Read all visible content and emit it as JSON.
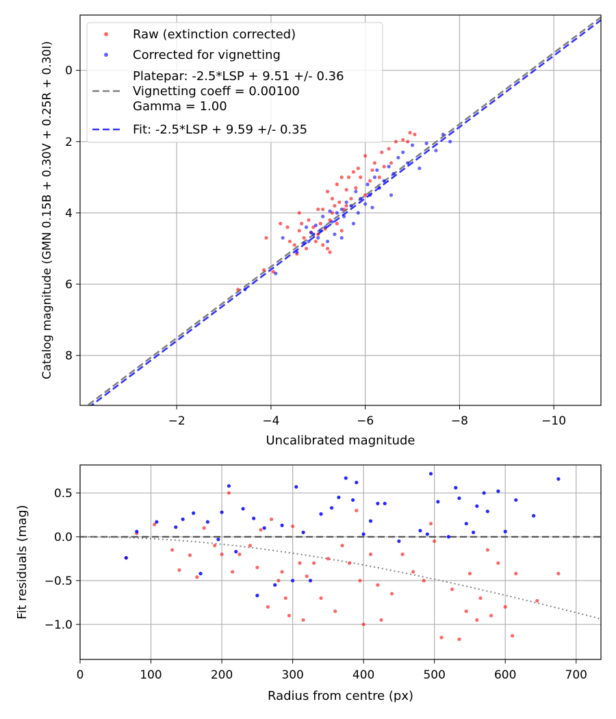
{
  "chart_data": [
    {
      "type": "scatter",
      "xlabel": "Uncalibrated magnitude",
      "ylabel": "Catalog magnitude (GMN 0.15B + 0.30V + 0.25R + 0.30I)",
      "xlim": [
        0.05,
        -11.0
      ],
      "ylim": [
        9.4,
        -1.55
      ],
      "xticks": [
        -2,
        -4,
        -6,
        -8,
        -10
      ],
      "xtick_labels": [
        "−2",
        "−4",
        "−6",
        "−8",
        "−10"
      ],
      "yticks": [
        0,
        2,
        4,
        6,
        8
      ],
      "ytick_labels": [
        "0",
        "2",
        "4",
        "6",
        "8"
      ],
      "grid": true,
      "legend_position": "top-left",
      "colors": {
        "raw": "#ff0000",
        "corrected": "#0000ff",
        "platepar": "#808080",
        "fit": "#3333ff"
      },
      "legend": [
        {
          "marker": "dot",
          "color": "#ff0000",
          "lines": [
            "Raw (extinction corrected)"
          ]
        },
        {
          "marker": "dot",
          "color": "#0000ff",
          "lines": [
            "Corrected for vignetting"
          ]
        },
        {
          "marker": "dash",
          "color": "#808080",
          "lines": [
            "Platepar: -2.5*LSP + 9.51 +/- 0.36",
            "Vignetting coeff = 0.00100",
            "Gamma = 1.00"
          ]
        },
        {
          "marker": "dash",
          "color": "#3333ff",
          "lines": [
            "Fit: -2.5*LSP + 9.59 +/- 0.35"
          ]
        }
      ],
      "lines": [
        {
          "name": "Platepar",
          "slope": 1,
          "intercept": 9.51,
          "color": "#808080",
          "style": "dashed"
        },
        {
          "name": "Fit",
          "slope": 1,
          "intercept": 9.59,
          "color": "#3333ff",
          "style": "dashed"
        }
      ],
      "series": [
        {
          "name": "Raw (extinction corrected)",
          "color": "#ff0000",
          "points": [
            [
              -3.3,
              6.15
            ],
            [
              -3.9,
              4.7
            ],
            [
              -3.85,
              5.6
            ],
            [
              -4.05,
              5.65
            ],
            [
              -4.2,
              4.3
            ],
            [
              -4.4,
              4.8
            ],
            [
              -4.5,
              4.9
            ],
            [
              -4.6,
              4.5
            ],
            [
              -4.6,
              4.0
            ],
            [
              -4.65,
              4.3
            ],
            [
              -4.7,
              4.7
            ],
            [
              -4.75,
              5.0
            ],
            [
              -4.8,
              4.2
            ],
            [
              -4.85,
              4.55
            ],
            [
              -4.9,
              4.4
            ],
            [
              -4.95,
              4.8
            ],
            [
              -5.0,
              3.9
            ],
            [
              -5.0,
              4.6
            ],
            [
              -5.05,
              4.3
            ],
            [
              -5.1,
              3.9
            ],
            [
              -5.1,
              4.9
            ],
            [
              -5.15,
              4.45
            ],
            [
              -5.2,
              3.4
            ],
            [
              -5.2,
              5.0
            ],
            [
              -5.25,
              4.2
            ],
            [
              -5.3,
              3.6
            ],
            [
              -5.3,
              4.0
            ],
            [
              -5.35,
              3.8
            ],
            [
              -5.4,
              4.3
            ],
            [
              -5.4,
              3.2
            ],
            [
              -5.45,
              3.7
            ],
            [
              -5.5,
              3.0
            ],
            [
              -5.5,
              4.5
            ],
            [
              -5.55,
              3.9
            ],
            [
              -5.6,
              3.35
            ],
            [
              -5.65,
              3.0
            ],
            [
              -5.7,
              3.6
            ],
            [
              -5.75,
              2.85
            ],
            [
              -5.8,
              3.3
            ],
            [
              -5.85,
              2.75
            ],
            [
              -5.9,
              3.0
            ],
            [
              -6.0,
              3.5
            ],
            [
              -6.0,
              2.4
            ],
            [
              -6.1,
              3.1
            ],
            [
              -6.15,
              2.8
            ],
            [
              -6.2,
              2.6
            ],
            [
              -6.3,
              3.0
            ],
            [
              -6.35,
              2.3
            ],
            [
              -6.4,
              2.7
            ],
            [
              -6.5,
              2.2
            ],
            [
              -6.55,
              2.6
            ],
            [
              -6.65,
              2.0
            ],
            [
              -6.8,
              1.95
            ],
            [
              -6.9,
              2.0
            ],
            [
              -6.95,
              1.75
            ],
            [
              -7.05,
              1.8
            ],
            [
              -5.25,
              5.1
            ],
            [
              -4.55,
              5.15
            ],
            [
              -5.6,
              3.8
            ],
            [
              -4.35,
              4.4
            ]
          ]
        },
        {
          "name": "Corrected for vignetting",
          "color": "#0000ff",
          "points": [
            [
              -3.45,
              6.15
            ],
            [
              -4.1,
              5.7
            ],
            [
              -4.25,
              4.7
            ],
            [
              -4.55,
              5.1
            ],
            [
              -4.7,
              4.85
            ],
            [
              -4.75,
              4.4
            ],
            [
              -4.8,
              4.8
            ],
            [
              -4.85,
              4.55
            ],
            [
              -4.9,
              4.6
            ],
            [
              -4.95,
              4.35
            ],
            [
              -5.0,
              4.7
            ],
            [
              -5.05,
              4.5
            ],
            [
              -5.1,
              4.1
            ],
            [
              -5.15,
              4.4
            ],
            [
              -5.2,
              4.8
            ],
            [
              -5.25,
              3.95
            ],
            [
              -5.3,
              4.25
            ],
            [
              -5.35,
              4.6
            ],
            [
              -5.4,
              4.0
            ],
            [
              -5.5,
              3.9
            ],
            [
              -5.55,
              4.1
            ],
            [
              -5.6,
              3.7
            ],
            [
              -5.7,
              3.8
            ],
            [
              -5.75,
              4.3
            ],
            [
              -5.8,
              3.4
            ],
            [
              -5.85,
              4.0
            ],
            [
              -5.9,
              3.6
            ],
            [
              -6.0,
              3.75
            ],
            [
              -6.05,
              3.2
            ],
            [
              -6.1,
              3.5
            ],
            [
              -6.2,
              3.0
            ],
            [
              -6.25,
              2.8
            ],
            [
              -6.3,
              3.3
            ],
            [
              -6.4,
              3.1
            ],
            [
              -6.5,
              2.7
            ],
            [
              -6.6,
              2.9
            ],
            [
              -6.7,
              2.45
            ],
            [
              -6.8,
              2.3
            ],
            [
              -6.9,
              2.6
            ],
            [
              -7.0,
              2.1
            ],
            [
              -7.15,
              2.75
            ],
            [
              -7.3,
              2.05
            ],
            [
              -7.5,
              2.25
            ],
            [
              -7.65,
              1.8
            ],
            [
              -7.8,
              2.0
            ],
            [
              -6.55,
              3.5
            ],
            [
              -6.15,
              3.85
            ],
            [
              -5.5,
              4.7
            ]
          ]
        }
      ]
    },
    {
      "type": "scatter",
      "xlabel": "Radius from centre (px)",
      "ylabel": "Fit residuals (mag)",
      "xlim": [
        0,
        735
      ],
      "ylim": [
        -1.4,
        0.82
      ],
      "xticks": [
        0,
        100,
        200,
        300,
        400,
        500,
        600,
        700
      ],
      "xtick_labels": [
        "0",
        "100",
        "200",
        "300",
        "400",
        "500",
        "600",
        "700"
      ],
      "yticks": [
        0.5,
        0.0,
        -0.5,
        -1.0
      ],
      "ytick_labels": [
        "0.5",
        "0.0",
        "−0.5",
        "−1.0"
      ],
      "grid": true,
      "colors": {
        "raw": "#ff0000",
        "corrected": "#0000ff",
        "zero_line": "#555555",
        "model": "#808080"
      },
      "vignetting_model": {
        "coeff": 0.001,
        "label": "dotted"
      },
      "series": [
        {
          "name": "Raw",
          "color": "#ff0000",
          "points": [
            [
              65,
              -0.24
            ],
            [
              80,
              0.04
            ],
            [
              105,
              0.14
            ],
            [
              130,
              -0.15
            ],
            [
              140,
              -0.38
            ],
            [
              155,
              -0.21
            ],
            [
              165,
              -0.46
            ],
            [
              175,
              0.1
            ],
            [
              190,
              -0.1
            ],
            [
              200,
              -0.2
            ],
            [
              210,
              0.5
            ],
            [
              215,
              -0.4
            ],
            [
              225,
              -0.2
            ],
            [
              240,
              -0.1
            ],
            [
              250,
              -0.35
            ],
            [
              255,
              0.08
            ],
            [
              265,
              -0.8
            ],
            [
              270,
              0.2
            ],
            [
              280,
              -0.5
            ],
            [
              285,
              -0.4
            ],
            [
              290,
              -0.7
            ],
            [
              295,
              -0.9
            ],
            [
              300,
              0.12
            ],
            [
              310,
              -0.3
            ],
            [
              315,
              -0.95
            ],
            [
              320,
              -0.45
            ],
            [
              330,
              -0.3
            ],
            [
              340,
              -0.7
            ],
            [
              350,
              -0.25
            ],
            [
              360,
              -0.85
            ],
            [
              370,
              -0.1
            ],
            [
              380,
              -0.3
            ],
            [
              390,
              0.3
            ],
            [
              395,
              -0.5
            ],
            [
              400,
              -1.0
            ],
            [
              410,
              -0.2
            ],
            [
              420,
              -0.55
            ],
            [
              425,
              -0.95
            ],
            [
              440,
              -0.65
            ],
            [
              455,
              -0.2
            ],
            [
              470,
              -0.4
            ],
            [
              485,
              -0.5
            ],
            [
              495,
              0.15
            ],
            [
              500,
              -0.05
            ],
            [
              510,
              -1.15
            ],
            [
              525,
              -0.6
            ],
            [
              535,
              -1.17
            ],
            [
              545,
              -0.85
            ],
            [
              550,
              -0.42
            ],
            [
              560,
              -0.95
            ],
            [
              565,
              -0.7
            ],
            [
              575,
              -0.15
            ],
            [
              580,
              -0.9
            ],
            [
              590,
              -0.3
            ],
            [
              600,
              -0.8
            ],
            [
              610,
              -1.13
            ],
            [
              615,
              -0.42
            ],
            [
              645,
              -0.73
            ],
            [
              675,
              -0.42
            ]
          ]
        },
        {
          "name": "Corrected",
          "color": "#0000ff",
          "points": [
            [
              65,
              -0.24
            ],
            [
              80,
              0.06
            ],
            [
              108,
              0.17
            ],
            [
              135,
              0.11
            ],
            [
              145,
              0.2
            ],
            [
              160,
              0.27
            ],
            [
              170,
              -0.42
            ],
            [
              180,
              0.17
            ],
            [
              195,
              -0.03
            ],
            [
              200,
              0.28
            ],
            [
              210,
              0.58
            ],
            [
              220,
              -0.17
            ],
            [
              230,
              0.32
            ],
            [
              245,
              0.21
            ],
            [
              250,
              -0.67
            ],
            [
              260,
              0.1
            ],
            [
              275,
              -0.55
            ],
            [
              285,
              0.13
            ],
            [
              300,
              -0.5
            ],
            [
              305,
              0.57
            ],
            [
              315,
              0.05
            ],
            [
              325,
              -0.5
            ],
            [
              340,
              0.26
            ],
            [
              355,
              0.33
            ],
            [
              365,
              0.45
            ],
            [
              375,
              0.67
            ],
            [
              385,
              0.42
            ],
            [
              390,
              0.62
            ],
            [
              400,
              0.03
            ],
            [
              410,
              0.18
            ],
            [
              420,
              0.38
            ],
            [
              430,
              0.38
            ],
            [
              450,
              -0.05
            ],
            [
              480,
              0.07
            ],
            [
              490,
              0.03
            ],
            [
              495,
              0.72
            ],
            [
              505,
              0.4
            ],
            [
              520,
              0.0
            ],
            [
              530,
              0.56
            ],
            [
              535,
              0.44
            ],
            [
              545,
              0.15
            ],
            [
              555,
              0.05
            ],
            [
              560,
              0.35
            ],
            [
              570,
              0.5
            ],
            [
              575,
              0.29
            ],
            [
              590,
              0.52
            ],
            [
              600,
              0.06
            ],
            [
              615,
              0.42
            ],
            [
              640,
              0.24
            ],
            [
              675,
              0.66
            ]
          ]
        }
      ]
    }
  ]
}
